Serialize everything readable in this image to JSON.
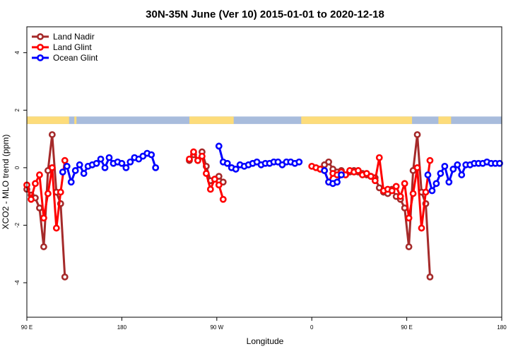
{
  "chart_data": {
    "type": "line",
    "title": "30N-35N June (Ver 10)   2015-01-01 to 2020-12-18",
    "xlabel": "Longitude",
    "ylabel": "XCO2 - MLO trend (ppm)",
    "x_ticks": [
      {
        "x": 0,
        "label": "90 E"
      },
      {
        "x": 90,
        "label": "180"
      },
      {
        "x": 180,
        "label": "90 W"
      },
      {
        "x": 270,
        "label": "0"
      },
      {
        "x": 360,
        "label": "90 E"
      },
      {
        "x": 450,
        "label": "180"
      }
    ],
    "y_ticks": [
      -4,
      -2,
      0,
      2,
      4
    ],
    "xlim": [
      0,
      450
    ],
    "ylim": [
      -5.2,
      4.9
    ],
    "grid": false,
    "legend_position": "top-left",
    "land_mask": {
      "y_range": [
        1.52,
        1.78
      ],
      "ocean_color": "#a8bcdc",
      "land_color": "#fddc7a",
      "land_segments": [
        [
          0,
          40
        ],
        [
          45,
          47
        ],
        [
          154,
          196
        ],
        [
          260,
          365
        ],
        [
          390,
          402
        ]
      ]
    },
    "series": [
      {
        "name": "Land Nadir",
        "color": "#a52a2a",
        "points": [
          [
            0,
            -0.75
          ],
          [
            4,
            -0.95
          ],
          [
            8,
            -1.05
          ],
          [
            12,
            -1.4
          ],
          [
            16,
            -2.75
          ],
          [
            20,
            -0.1
          ],
          [
            24,
            1.15
          ],
          [
            28,
            -0.85
          ],
          [
            32,
            -1.25
          ],
          [
            36,
            -3.8
          ],
          [
            154,
            0.25
          ],
          [
            158,
            0.45
          ],
          [
            162,
            0.25
          ],
          [
            166,
            0.55
          ],
          [
            170,
            0.05
          ],
          [
            174,
            -0.45
          ],
          [
            178,
            -0.4
          ],
          [
            182,
            -0.3
          ],
          [
            186,
            -0.5
          ],
          [
            278,
            -0.05
          ],
          [
            282,
            0.1
          ],
          [
            286,
            0.2
          ],
          [
            290,
            -0.05
          ],
          [
            294,
            -0.15
          ],
          [
            298,
            -0.1
          ],
          [
            302,
            -0.25
          ],
          [
            306,
            -0.15
          ],
          [
            310,
            -0.1
          ],
          [
            314,
            -0.15
          ],
          [
            318,
            -0.2
          ],
          [
            322,
            -0.25
          ],
          [
            326,
            -0.3
          ],
          [
            330,
            -0.35
          ],
          [
            334,
            -0.7
          ],
          [
            338,
            -0.85
          ],
          [
            342,
            -0.9
          ],
          [
            346,
            -0.75
          ],
          [
            350,
            -1.0
          ],
          [
            354,
            -1.1
          ],
          [
            358,
            -1.4
          ],
          [
            362,
            -2.75
          ],
          [
            366,
            -0.1
          ],
          [
            370,
            1.15
          ],
          [
            374,
            -0.85
          ],
          [
            378,
            -1.25
          ],
          [
            382,
            -3.8
          ]
        ]
      },
      {
        "name": "Land Glint",
        "color": "#ff0000",
        "points": [
          [
            0,
            -0.6
          ],
          [
            4,
            -1.1
          ],
          [
            8,
            -0.55
          ],
          [
            12,
            -0.25
          ],
          [
            16,
            -1.75
          ],
          [
            20,
            -0.9
          ],
          [
            24,
            0.0
          ],
          [
            28,
            -2.1
          ],
          [
            32,
            -0.85
          ],
          [
            36,
            0.25
          ],
          [
            154,
            0.3
          ],
          [
            158,
            0.55
          ],
          [
            162,
            0.25
          ],
          [
            166,
            0.4
          ],
          [
            170,
            -0.2
          ],
          [
            174,
            -0.75
          ],
          [
            178,
            -0.4
          ],
          [
            182,
            -0.6
          ],
          [
            186,
            -1.1
          ],
          [
            270,
            0.05
          ],
          [
            274,
            0.0
          ],
          [
            278,
            -0.05
          ],
          [
            282,
            -0.1
          ],
          [
            286,
            -0.5
          ],
          [
            290,
            -0.2
          ],
          [
            294,
            -0.25
          ],
          [
            298,
            -0.15
          ],
          [
            302,
            -0.25
          ],
          [
            306,
            -0.1
          ],
          [
            310,
            -0.15
          ],
          [
            314,
            -0.1
          ],
          [
            318,
            -0.25
          ],
          [
            322,
            -0.2
          ],
          [
            326,
            -0.3
          ],
          [
            330,
            -0.45
          ],
          [
            334,
            0.35
          ],
          [
            338,
            -0.8
          ],
          [
            342,
            -0.75
          ],
          [
            346,
            -0.8
          ],
          [
            350,
            -0.65
          ],
          [
            354,
            -1.0
          ],
          [
            358,
            -0.55
          ],
          [
            362,
            -1.75
          ],
          [
            366,
            -0.9
          ],
          [
            370,
            0.0
          ],
          [
            374,
            -2.1
          ],
          [
            378,
            -0.85
          ],
          [
            382,
            0.25
          ]
        ]
      },
      {
        "name": "Ocean Glint",
        "color": "#0000ff",
        "points": [
          [
            34,
            -0.15
          ],
          [
            38,
            0.05
          ],
          [
            42,
            -0.5
          ],
          [
            46,
            -0.1
          ],
          [
            50,
            0.1
          ],
          [
            54,
            -0.2
          ],
          [
            58,
            0.05
          ],
          [
            62,
            0.1
          ],
          [
            66,
            0.15
          ],
          [
            70,
            0.3
          ],
          [
            74,
            0.0
          ],
          [
            78,
            0.35
          ],
          [
            82,
            0.15
          ],
          [
            86,
            0.2
          ],
          [
            90,
            0.15
          ],
          [
            94,
            0.0
          ],
          [
            98,
            0.2
          ],
          [
            102,
            0.35
          ],
          [
            106,
            0.3
          ],
          [
            110,
            0.4
          ],
          [
            114,
            0.5
          ],
          [
            118,
            0.45
          ],
          [
            122,
            0.0
          ],
          [
            182,
            0.75
          ],
          [
            186,
            0.2
          ],
          [
            190,
            0.15
          ],
          [
            194,
            0.0
          ],
          [
            198,
            -0.05
          ],
          [
            202,
            0.1
          ],
          [
            206,
            0.05
          ],
          [
            210,
            0.1
          ],
          [
            214,
            0.15
          ],
          [
            218,
            0.2
          ],
          [
            222,
            0.1
          ],
          [
            226,
            0.15
          ],
          [
            230,
            0.15
          ],
          [
            234,
            0.2
          ],
          [
            238,
            0.2
          ],
          [
            242,
            0.1
          ],
          [
            246,
            0.2
          ],
          [
            250,
            0.2
          ],
          [
            254,
            0.15
          ],
          [
            258,
            0.2
          ],
          [
            282,
            -0.1
          ],
          [
            286,
            -0.5
          ],
          [
            290,
            -0.55
          ],
          [
            294,
            -0.5
          ],
          [
            298,
            -0.25
          ],
          [
            380,
            -0.25
          ],
          [
            384,
            -0.8
          ],
          [
            388,
            -0.55
          ],
          [
            392,
            -0.2
          ],
          [
            396,
            0.05
          ],
          [
            400,
            -0.5
          ],
          [
            404,
            -0.05
          ],
          [
            408,
            0.1
          ],
          [
            412,
            -0.25
          ],
          [
            416,
            0.1
          ],
          [
            420,
            0.1
          ],
          [
            424,
            0.15
          ],
          [
            428,
            0.15
          ],
          [
            432,
            0.15
          ],
          [
            436,
            0.2
          ],
          [
            440,
            0.15
          ],
          [
            444,
            0.15
          ],
          [
            448,
            0.15
          ]
        ]
      }
    ]
  }
}
